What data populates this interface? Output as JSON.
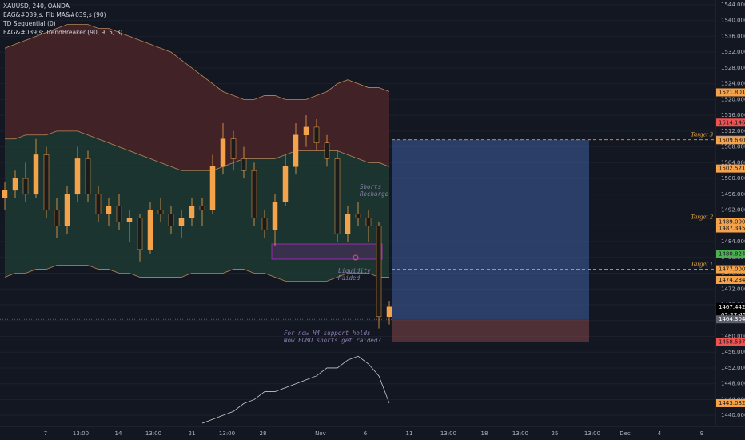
{
  "chart_data": {
    "type": "candlestick",
    "title": "XAUUSD, 240, OANDA",
    "indicators": [
      "EAG&#039;s: Fib MA&#039;s (90)",
      "TD Sequential (0)",
      "EAG&#039;s: TrendBreaker (90, 9, 5, 3)"
    ],
    "open": [
      1495,
      1497,
      1500,
      1496,
      1506,
      1492,
      1488,
      1496,
      1505,
      1496,
      1491,
      1493,
      1489,
      1490,
      1482,
      1492,
      1491,
      1488,
      1490,
      1493,
      1492,
      1503,
      1510,
      1505,
      1502,
      1490,
      1487,
      1494,
      1503,
      1511,
      1513,
      1509,
      1505,
      1486,
      1491,
      1490,
      1488,
      1465
    ],
    "high": [
      1499,
      1502,
      1504,
      1510,
      1508,
      1495,
      1498,
      1508,
      1507,
      1498,
      1495,
      1496,
      1492,
      1491,
      1494,
      1495,
      1493,
      1492,
      1495,
      1495,
      1506,
      1514,
      1512,
      1508,
      1504,
      1492,
      1496,
      1506,
      1514,
      1516,
      1515,
      1511,
      1507,
      1493,
      1494,
      1492,
      1489,
      1469
    ],
    "low": [
      1492,
      1495,
      1494,
      1495,
      1490,
      1485,
      1486,
      1494,
      1494,
      1489,
      1488,
      1487,
      1484,
      1479,
      1481,
      1489,
      1486,
      1485,
      1488,
      1488,
      1491,
      1501,
      1502,
      1500,
      1488,
      1485,
      1483,
      1493,
      1501,
      1508,
      1507,
      1503,
      1484,
      1484,
      1488,
      1484,
      1462,
      1463
    ],
    "close": [
      1497,
      1500,
      1496,
      1506,
      1492,
      1488,
      1496,
      1505,
      1496,
      1491,
      1493,
      1489,
      1490,
      1482,
      1492,
      1491,
      1488,
      1490,
      1493,
      1492,
      1503,
      1510,
      1505,
      1502,
      1490,
      1487,
      1494,
      1503,
      1511,
      1513,
      1509,
      1505,
      1486,
      1491,
      1490,
      1488,
      1465,
      1467.442
    ],
    "up_color": "#f5a34a",
    "down_color": "#1b1b1b",
    "bands": {
      "upper": [
        1533,
        1534,
        1535,
        1536,
        1537,
        1538,
        1539,
        1539,
        1539,
        1538,
        1538,
        1537,
        1536,
        1535,
        1534,
        1533,
        1532,
        1530,
        1528,
        1526,
        1524,
        1522,
        1521,
        1520,
        1520,
        1521,
        1521,
        1520,
        1520,
        1520,
        1521,
        1522,
        1524,
        1525,
        1524,
        1523,
        1523,
        1522
      ],
      "basis": [
        1510,
        1510,
        1511,
        1511,
        1511,
        1512,
        1512,
        1512,
        1511,
        1510,
        1509,
        1508,
        1507,
        1506,
        1505,
        1504,
        1503,
        1502,
        1502,
        1502,
        1502,
        1503,
        1504,
        1505,
        1505,
        1505,
        1505,
        1506,
        1507,
        1507,
        1507,
        1507,
        1507,
        1506,
        1505,
        1504,
        1504,
        1503
      ],
      "lower": [
        1475,
        1476,
        1476,
        1477,
        1477,
        1478,
        1478,
        1478,
        1478,
        1477,
        1477,
        1476,
        1476,
        1475,
        1475,
        1475,
        1475,
        1475,
        1476,
        1476,
        1476,
        1476,
        1477,
        1477,
        1476,
        1476,
        1475,
        1474,
        1474,
        1474,
        1474,
        1474,
        1475,
        1476,
        1476,
        1476,
        1475,
        1475
      ],
      "upper_fill": "#4a2428",
      "lower_fill": "#1f3a32",
      "line_color": "#b8875a"
    },
    "oscillator": {
      "color": "#c9c9c9",
      "values": [
        null,
        null,
        null,
        null,
        null,
        null,
        null,
        null,
        null,
        null,
        null,
        null,
        null,
        null,
        null,
        null,
        null,
        null,
        null,
        1438,
        1439,
        1440,
        1441,
        1443,
        1444,
        1446,
        1446,
        1447,
        1448,
        1449,
        1450,
        1452,
        1452,
        1454,
        1455,
        1453,
        1450,
        1443.082
      ]
    },
    "ylim": [
      1437.2,
      1545.2
    ],
    "grid": true,
    "yticks": [
      {
        "value": 1440,
        "label": "1440.000"
      },
      {
        "value": 1444,
        "label": "1444.000"
      },
      {
        "value": 1448,
        "label": "1448.000"
      },
      {
        "value": 1452,
        "label": "1452.000"
      },
      {
        "value": 1456,
        "label": "1456.000"
      },
      {
        "value": 1460,
        "label": "1460.000"
      },
      {
        "value": 1464,
        "label": "1464.000"
      },
      {
        "value": 1468,
        "label": "1468.000"
      },
      {
        "value": 1472,
        "label": "1472.000"
      },
      {
        "value": 1476,
        "label": "1476.000"
      },
      {
        "value": 1480,
        "label": "1480.000"
      },
      {
        "value": 1484,
        "label": "1484.000"
      },
      {
        "value": 1488,
        "label": "1488.000"
      },
      {
        "value": 1492,
        "label": "1492.000"
      },
      {
        "value": 1496,
        "label": "1496.000"
      },
      {
        "value": 1500,
        "label": "1500.000"
      },
      {
        "value": 1504,
        "label": "1504.000"
      },
      {
        "value": 1508,
        "label": "1508.000"
      },
      {
        "value": 1512,
        "label": "1512.000"
      },
      {
        "value": 1516,
        "label": "1516.000"
      },
      {
        "value": 1520,
        "label": "1520.000"
      },
      {
        "value": 1524,
        "label": "1524.000"
      },
      {
        "value": 1528,
        "label": "1528.000"
      },
      {
        "value": 1532,
        "label": "1532.000"
      },
      {
        "value": 1536,
        "label": "1536.000"
      },
      {
        "value": 1540,
        "label": "1540.000"
      },
      {
        "value": 1544,
        "label": "1544.000"
      }
    ],
    "price_labels": [
      {
        "value": 1521.801,
        "label": "1521.801",
        "color": "#f5a34a"
      },
      {
        "value": 1514.146,
        "label": "1514.146",
        "color": "#ef5350"
      },
      {
        "value": 1509.803,
        "label": "1509.803",
        "color": "#5b8dd9"
      },
      {
        "value": 1509.68,
        "label": "1509.680",
        "color": "#f5a34a"
      },
      {
        "value": 1502.521,
        "label": "1502.521",
        "color": "#f5a34a"
      },
      {
        "value": 1489.0,
        "label": "1489.000",
        "color": "#f5a34a"
      },
      {
        "value": 1487.345,
        "label": "1487.345",
        "color": "#f5a34a"
      },
      {
        "value": 1480.824,
        "label": "1480.824",
        "color": "#4caf50"
      },
      {
        "value": 1477.0,
        "label": "1477.000",
        "color": "#f5a34a"
      },
      {
        "value": 1474.284,
        "label": "1474.284",
        "color": "#f5a34a"
      },
      {
        "value": 1467.442,
        "label": "1467.442",
        "color": "#000000"
      },
      {
        "value": 1464.304,
        "label": "1464.304",
        "color": "#5d606b"
      },
      {
        "value": 1458.537,
        "label": "1458.537",
        "color": "#ef5350"
      },
      {
        "value": 1443.082,
        "label": "1443.082",
        "color": "#f5a34a"
      }
    ],
    "countdown": "02:27:45",
    "targets": [
      {
        "label": "Target 3",
        "value": 1509.803
      },
      {
        "label": "Target 2",
        "value": 1489.0
      },
      {
        "label": "Target 1",
        "value": 1477.0
      }
    ],
    "position": {
      "target": 1509.803,
      "entry": 1464.304,
      "stop": 1458.537
    },
    "annotations": [
      {
        "lines": [
          "Shorts",
          "Recharge"
        ]
      },
      {
        "lines": [
          "Liquidity",
          "Raided"
        ]
      },
      {
        "lines": [
          "For now H4 support holds",
          "Now FOMO shorts get raided?"
        ]
      }
    ],
    "time_labels": [
      "7",
      "13:00",
      "14",
      "13:00",
      "21",
      "13:00",
      "28",
      "Nov",
      "6",
      "11",
      "13:00",
      "18",
      "13:00",
      "25",
      "13:00",
      "Dec",
      "4",
      "9"
    ]
  }
}
